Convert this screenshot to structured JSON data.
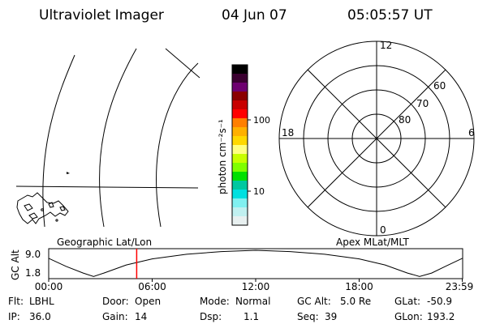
{
  "header": {
    "title": "Ultraviolet Imager",
    "date": "04 Jun 07",
    "time": "05:05:57 UT"
  },
  "colorbar": {
    "unit_label": "photon cm⁻²s⁻¹",
    "tick_100": "100",
    "tick_10": "10",
    "colors_top_to_bottom": [
      "#000000",
      "#3a0030",
      "#6e0070",
      "#8a0000",
      "#c80000",
      "#ff0000",
      "#ff7f00",
      "#ffb000",
      "#ffd800",
      "#ffff80",
      "#c8ff00",
      "#7fff00",
      "#00e000",
      "#00c8a0",
      "#00e0e0",
      "#80f0f0",
      "#c0f0f0",
      "#e8f0f0"
    ]
  },
  "polar": {
    "mlt_top": "12",
    "mlt_left": "18",
    "mlt_right": "6",
    "mlt_bottom": "0",
    "lat_60": "60",
    "lat_70": "70",
    "lat_80": "80"
  },
  "labels": {
    "geographic": "Geographic Lat/Lon",
    "apex": "Apex MLat/MLT"
  },
  "altitude_strip": {
    "axis_label": "GC Alt",
    "y_max": "9.0",
    "y_min": "1.8",
    "x_ticks": [
      "00:00",
      "06:00",
      "12:00",
      "18:00",
      "23:59"
    ],
    "marker_hour": 5.1,
    "curve": [
      [
        0,
        0.7
      ],
      [
        1,
        0.4
      ],
      [
        2,
        0.15
      ],
      [
        2.6,
        0.02
      ],
      [
        3.2,
        0.15
      ],
      [
        4.5,
        0.45
      ],
      [
        6,
        0.68
      ],
      [
        8,
        0.85
      ],
      [
        10,
        0.95
      ],
      [
        12,
        1.0
      ],
      [
        14,
        0.95
      ],
      [
        16,
        0.85
      ],
      [
        18,
        0.68
      ],
      [
        19.5,
        0.45
      ],
      [
        20.8,
        0.15
      ],
      [
        21.5,
        0.02
      ],
      [
        22.2,
        0.15
      ],
      [
        23,
        0.4
      ],
      [
        23.98,
        0.7
      ]
    ]
  },
  "status": {
    "flt_label": "Flt:",
    "flt_value": "LBHL",
    "door_label": "Door:",
    "door_value": "Open",
    "mode_label": "Mode:",
    "mode_value": "Normal",
    "gcalt_label": "GC Alt:",
    "gcalt_value": "5.0 Re",
    "glat_label": "GLat:",
    "glat_value": "-50.9",
    "ip_label": "IP:",
    "ip_value": "36.0",
    "gain_label": "Gain:",
    "gain_value": "14",
    "dsp_label": "Dsp:",
    "dsp_value": "1.1",
    "seq_label": "Seq:",
    "seq_value": "39",
    "glon_label": "GLon:",
    "glon_value": "193.2"
  }
}
